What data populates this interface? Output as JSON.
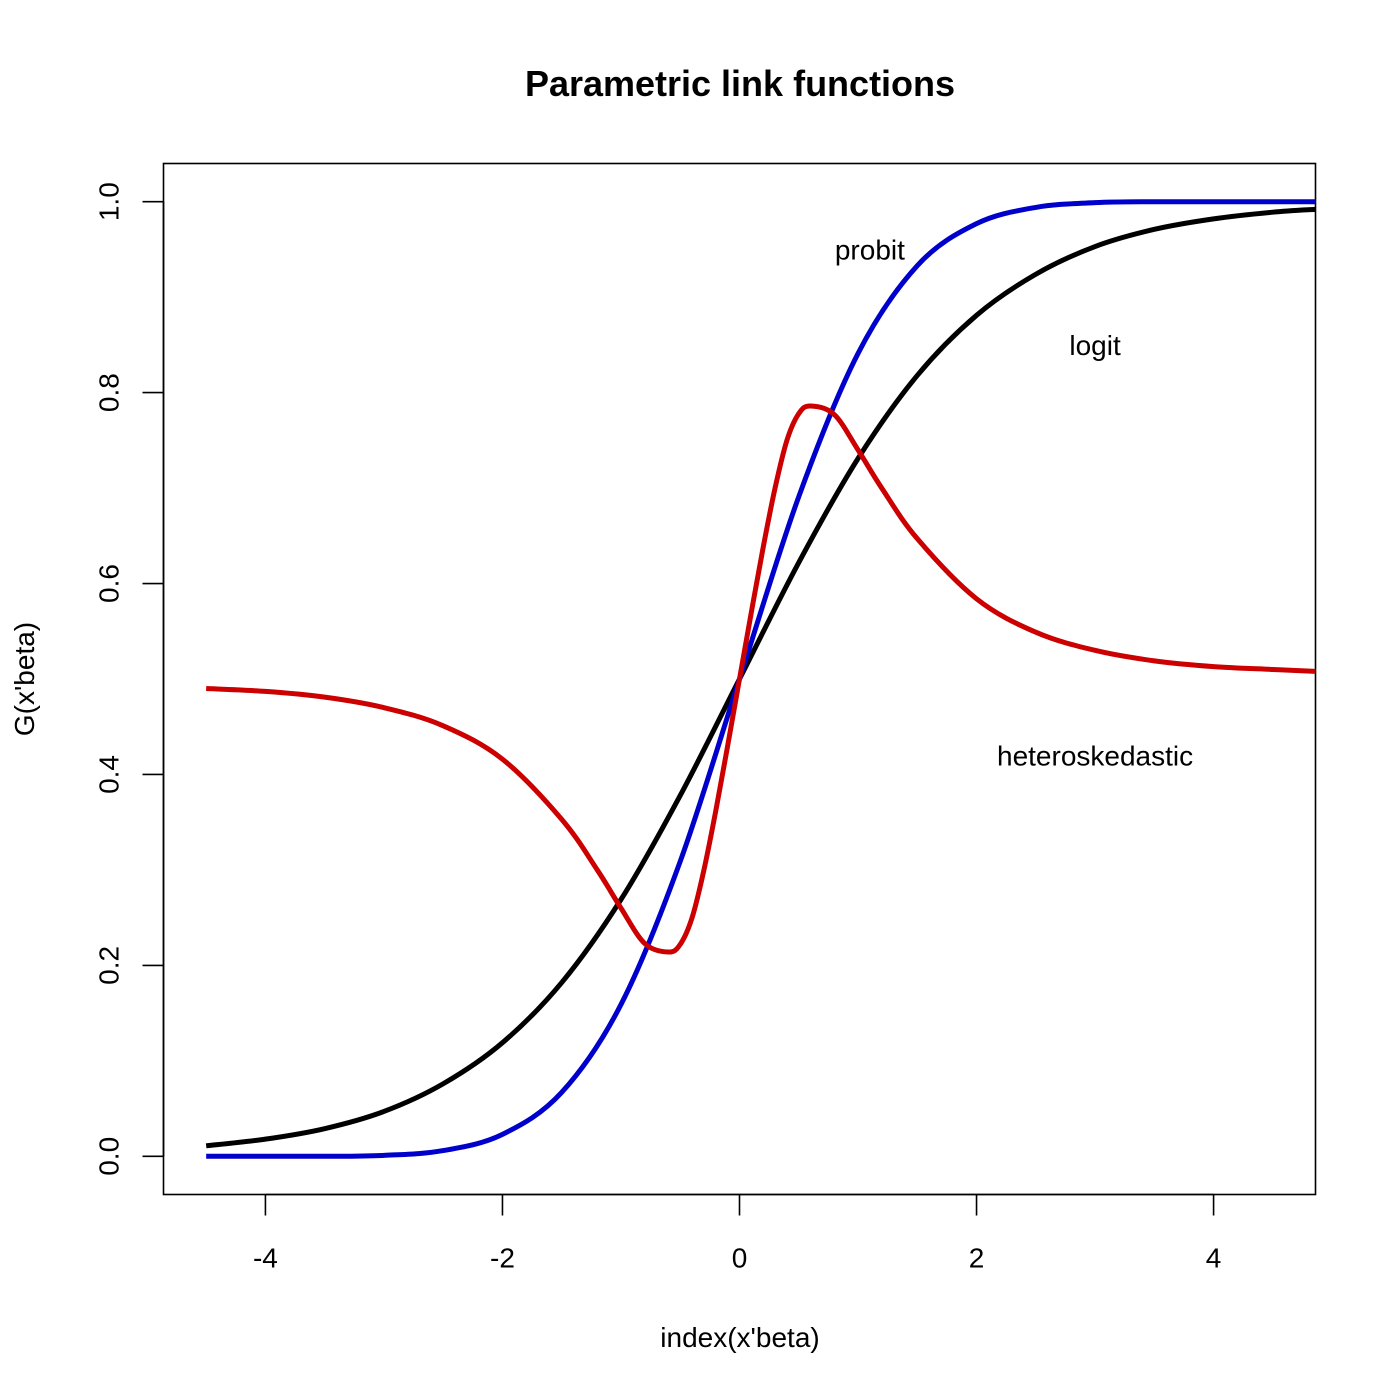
{
  "chart_data": {
    "type": "line",
    "title": "Parametric link functions",
    "xlabel": "index(x'beta)",
    "ylabel": "G(x'beta)",
    "xlim": [
      -4.86,
      4.86
    ],
    "ylim": [
      -0.04,
      1.04
    ],
    "x_ticks": [
      -4,
      -2,
      0,
      2,
      4
    ],
    "x_tick_labels": [
      "-4",
      "-2",
      "0",
      "2",
      "4"
    ],
    "y_ticks": [
      0.0,
      0.2,
      0.4,
      0.6,
      0.8,
      1.0
    ],
    "y_tick_labels": [
      "0.0",
      "0.2",
      "0.4",
      "0.6",
      "0.8",
      "1.0"
    ],
    "grid": false,
    "series": [
      {
        "name": "logit",
        "color": "#000000",
        "x": [
          -4.5,
          -4.0,
          -3.5,
          -3.0,
          -2.5,
          -2.0,
          -1.5,
          -1.0,
          -0.5,
          0.0,
          0.5,
          1.0,
          1.5,
          2.0,
          2.5,
          3.0,
          3.5,
          4.0,
          4.5,
          4.86
        ],
        "y": [
          0.011,
          0.018,
          0.029,
          0.047,
          0.076,
          0.119,
          0.182,
          0.269,
          0.378,
          0.5,
          0.622,
          0.731,
          0.818,
          0.881,
          0.924,
          0.953,
          0.971,
          0.982,
          0.989,
          0.992
        ]
      },
      {
        "name": "probit",
        "color": "#0000cc",
        "x": [
          -4.5,
          -4.0,
          -3.5,
          -3.0,
          -2.5,
          -2.0,
          -1.5,
          -1.0,
          -0.5,
          0.0,
          0.5,
          1.0,
          1.5,
          2.0,
          2.5,
          3.0,
          3.5,
          4.0,
          4.5,
          4.86
        ],
        "y": [
          0.0,
          0.0,
          0.0,
          0.001,
          0.006,
          0.023,
          0.067,
          0.159,
          0.309,
          0.5,
          0.691,
          0.841,
          0.933,
          0.977,
          0.994,
          0.999,
          1.0,
          1.0,
          1.0,
          1.0
        ]
      },
      {
        "name": "heteroskedastic",
        "color": "#cc0000",
        "x": [
          -4.5,
          -4.0,
          -3.5,
          -3.0,
          -2.5,
          -2.0,
          -1.5,
          -1.2,
          -1.0,
          -0.8,
          -0.6,
          -0.5,
          -0.4,
          -0.3,
          -0.2,
          -0.1,
          0.0,
          0.1,
          0.2,
          0.3,
          0.4,
          0.5,
          0.6,
          0.8,
          1.0,
          1.2,
          1.5,
          2.0,
          2.5,
          3.0,
          3.5,
          4.0,
          4.5,
          4.86
        ],
        "y": [
          0.49,
          0.487,
          0.481,
          0.47,
          0.451,
          0.416,
          0.353,
          0.3,
          0.26,
          0.223,
          0.214,
          0.222,
          0.25,
          0.3,
          0.362,
          0.43,
          0.5,
          0.57,
          0.638,
          0.7,
          0.75,
          0.778,
          0.786,
          0.777,
          0.74,
          0.7,
          0.647,
          0.584,
          0.549,
          0.53,
          0.519,
          0.513,
          0.51,
          0.508
        ]
      }
    ],
    "annotations": [
      {
        "text": "probit",
        "x": 1.1,
        "y": 0.95
      },
      {
        "text": "logit",
        "x": 3.0,
        "y": 0.85
      },
      {
        "text": "heteroskedastic",
        "x": 3.0,
        "y": 0.42
      }
    ]
  }
}
